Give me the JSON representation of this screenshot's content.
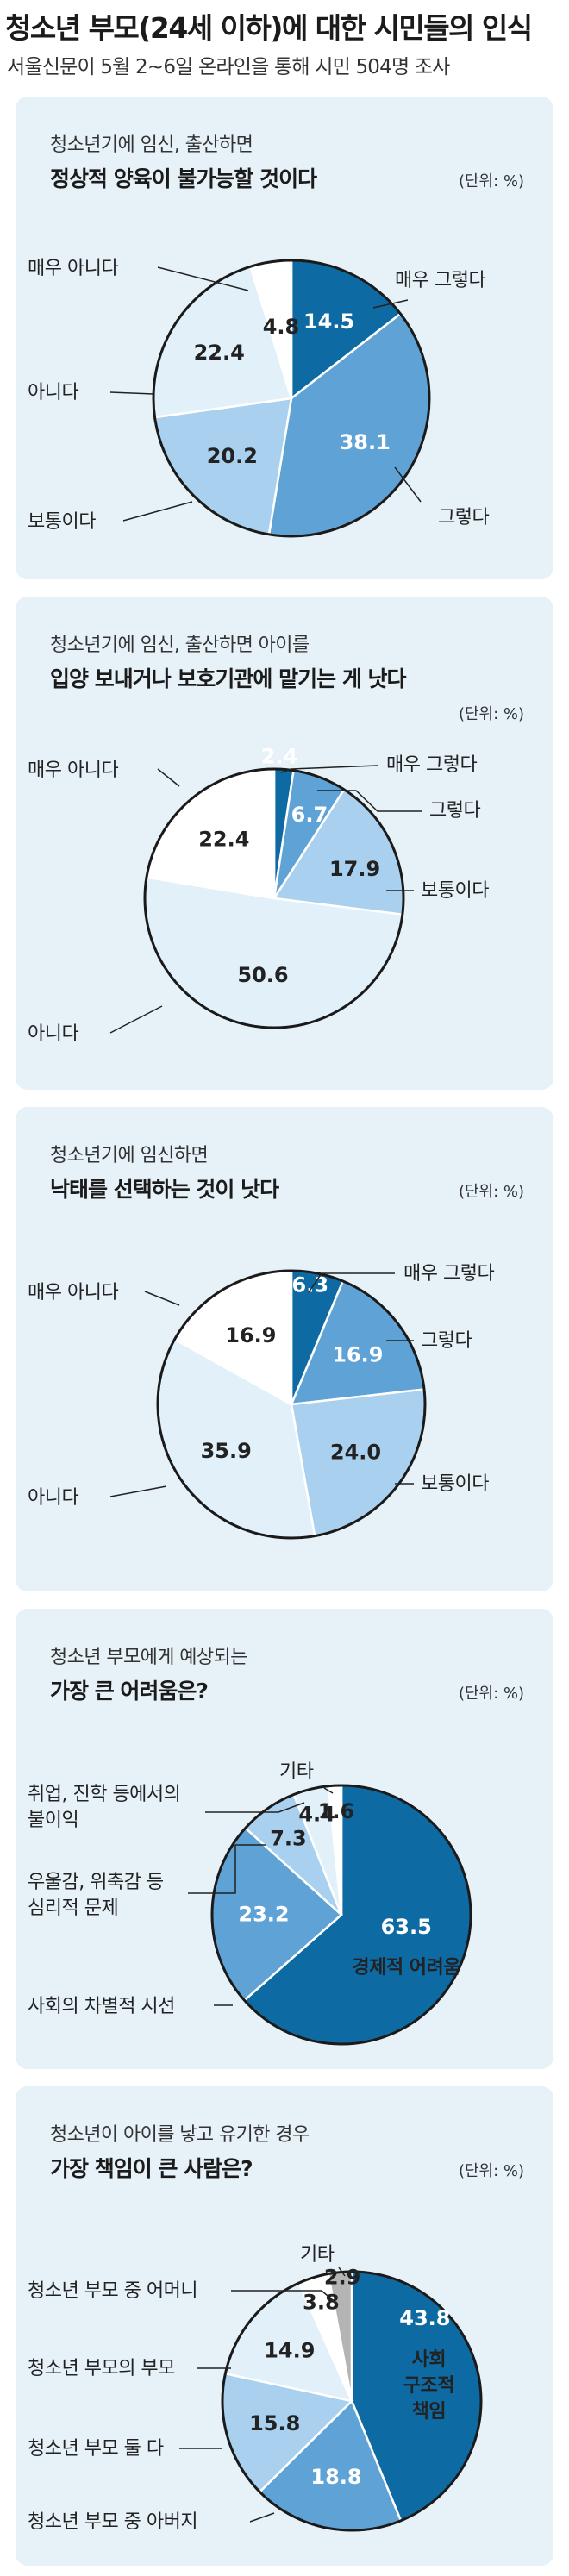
{
  "header": {
    "title": "청소년 부모(24세 이하)에 대한 시민들의 인식",
    "subtitle": "서울신문이 5월 2~6일 온라인을 통해 시민 504명 조사"
  },
  "colors": {
    "panel_bg": "#e6f1f8",
    "dark_blue": "#0e6aa3",
    "mid_blue": "#5fa3d6",
    "light_blue": "#a9d0ee",
    "pale_blue": "#e2f0fa",
    "white": "#ffffff",
    "gray": "#b4b4b4"
  },
  "chart_data": [
    {
      "type": "pie",
      "title_line1": "청소년기에 임신, 출산하면",
      "title_line2": "정상적 양육이 불가능할 것이다",
      "unit": "(단위: %)",
      "categories": [
        "매우 그렇다",
        "그렇다",
        "보통이다",
        "아니다",
        "매우 아니다"
      ],
      "values": [
        14.5,
        38.1,
        20.2,
        22.4,
        4.8
      ]
    },
    {
      "type": "pie",
      "title_line1": "청소년기에 임신, 출산하면 아이를",
      "title_line2": "입양 보내거나 보호기관에 맡기는 게 낫다",
      "unit": "(단위: %)",
      "categories": [
        "매우 그렇다",
        "그렇다",
        "보통이다",
        "아니다",
        "매우 아니다"
      ],
      "values": [
        2.4,
        6.7,
        17.9,
        50.6,
        22.4
      ]
    },
    {
      "type": "pie",
      "title_line1": "청소년기에 임신하면",
      "title_line2": "낙태를 선택하는 것이 낫다",
      "unit": "(단위: %)",
      "categories": [
        "매우 그렇다",
        "그렇다",
        "보통이다",
        "아니다",
        "매우 아니다"
      ],
      "values": [
        6.3,
        16.9,
        24.0,
        35.9,
        16.9
      ]
    },
    {
      "type": "pie",
      "title_line1": "청소년 부모에게 예상되는",
      "title_line2": "가장 큰 어려움은?",
      "unit": "(단위: %)",
      "categories": [
        "경제적 어려움",
        "사회의 차별적 시선",
        "우울감, 위축감 등 심리적 문제",
        "취업, 진학 등에서의 불이익",
        "기타"
      ],
      "values": [
        63.5,
        23.2,
        7.3,
        4.4,
        1.6
      ]
    },
    {
      "type": "pie",
      "title_line1": "청소년이 아이를 낳고 유기한 경우",
      "title_line2": "가장 책임이 큰 사람은?",
      "unit": "(단위: %)",
      "categories": [
        "사회 구조적 책임",
        "청소년 부모 중 아버지",
        "청소년 부모 둘 다",
        "청소년 부모의 부모",
        "청소년 부모 중 어머니",
        "기타"
      ],
      "values": [
        43.8,
        18.8,
        15.8,
        14.9,
        3.8,
        2.9
      ]
    }
  ]
}
